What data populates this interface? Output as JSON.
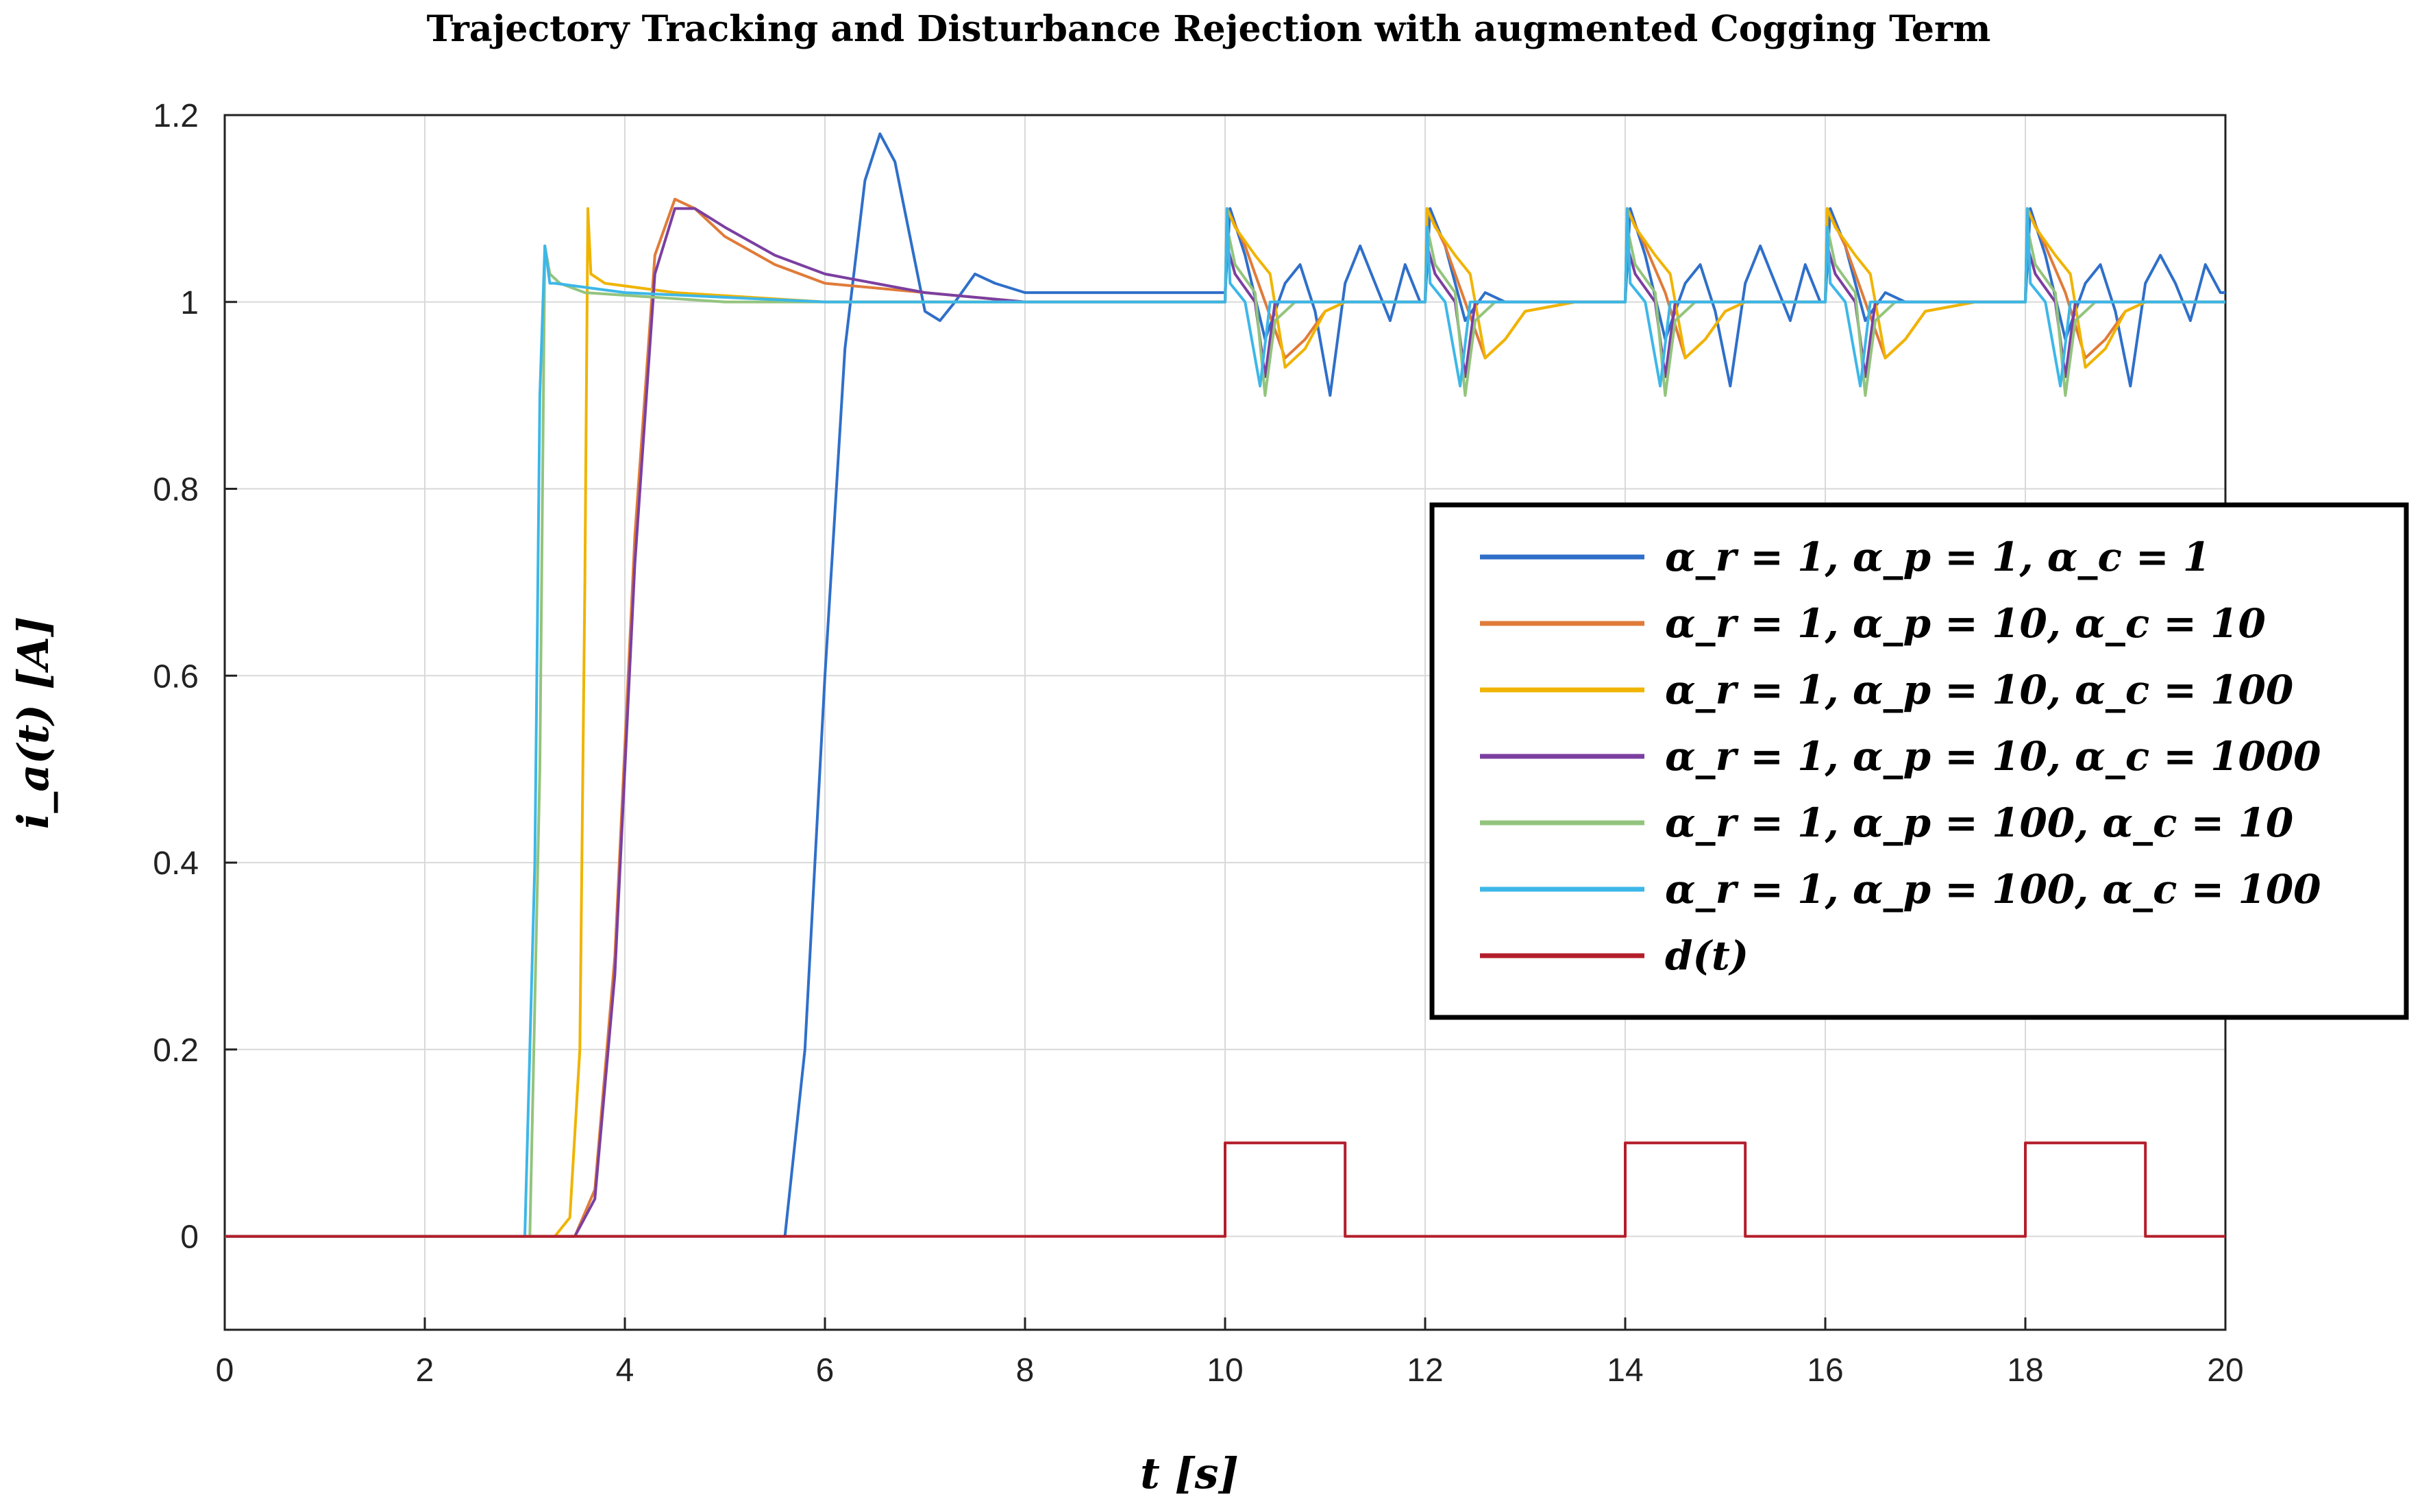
{
  "chart_data": {
    "type": "line",
    "title": "Trajectory Tracking and Disturbance Rejection with augmented Cogging Term",
    "xlabel": "t [s]",
    "ylabel": "i_a(t) [A]",
    "xlim": [
      0,
      20
    ],
    "ylim": [
      -0.1,
      1.2
    ],
    "xticks": [
      "0",
      "2",
      "4",
      "6",
      "8",
      "10",
      "12",
      "14",
      "16",
      "18",
      "20"
    ],
    "yticks": [
      "0",
      "0.2",
      "0.4",
      "0.6",
      "0.8",
      "1",
      "1.2"
    ],
    "grid": true,
    "legend_position": "center-right",
    "series": [
      {
        "name": "α_r = 1, α_p = 1, α_c = 1",
        "color": "#2f6fc9",
        "x": [
          0,
          5.6,
          5.8,
          6.0,
          6.2,
          6.4,
          6.55,
          6.7,
          6.85,
          7.0,
          7.15,
          7.3,
          7.5,
          7.7,
          8.0,
          8.5,
          9.0,
          9.5,
          10.0,
          10.05,
          10.2,
          10.4,
          10.6,
          10.75,
          10.9,
          11.05,
          11.2,
          11.35,
          11.5,
          11.65,
          11.8,
          11.95,
          12.0,
          12.05,
          12.2,
          12.4,
          12.6,
          12.8,
          13.0,
          13.5,
          14.0,
          14.05,
          14.2,
          14.4,
          14.6,
          14.75,
          14.9,
          15.05,
          15.2,
          15.35,
          15.5,
          15.65,
          15.8,
          15.95,
          16.0,
          16.05,
          16.2,
          16.4,
          16.6,
          16.8,
          17.0,
          17.5,
          18.0,
          18.05,
          18.2,
          18.4,
          18.6,
          18.75,
          18.9,
          19.05,
          19.2,
          19.35,
          19.5,
          19.65,
          19.8,
          19.95,
          20.0
        ],
        "y": [
          0,
          0,
          0.2,
          0.6,
          0.95,
          1.13,
          1.18,
          1.15,
          1.07,
          0.99,
          0.98,
          1.0,
          1.03,
          1.02,
          1.01,
          1.01,
          1.01,
          1.01,
          1.01,
          1.1,
          1.05,
          0.96,
          1.02,
          1.04,
          0.99,
          0.9,
          1.02,
          1.06,
          1.02,
          0.98,
          1.04,
          1.0,
          1.0,
          1.1,
          1.06,
          0.98,
          1.01,
          1.0,
          1.0,
          1.0,
          1.0,
          1.1,
          1.05,
          0.96,
          1.02,
          1.04,
          0.99,
          0.91,
          1.02,
          1.06,
          1.02,
          0.98,
          1.04,
          1.0,
          1.0,
          1.1,
          1.06,
          0.98,
          1.01,
          1.0,
          1.0,
          1.0,
          1.0,
          1.1,
          1.05,
          0.96,
          1.02,
          1.04,
          0.99,
          0.91,
          1.02,
          1.05,
          1.02,
          0.98,
          1.04,
          1.01,
          1.01
        ]
      },
      {
        "name": "α_r = 1, α_p = 10, α_c = 10",
        "color": "#e07b39",
        "x": [
          0,
          3.5,
          3.7,
          3.9,
          4.1,
          4.3,
          4.5,
          4.7,
          5.0,
          5.5,
          6.0,
          7.0,
          8.0,
          9.0,
          10.0,
          10.02,
          10.2,
          10.4,
          10.6,
          10.8,
          11.0,
          11.2,
          11.5,
          12.0,
          12.02,
          12.2,
          12.4,
          12.6,
          12.8,
          13.0,
          13.5,
          14.0,
          14.02,
          14.2,
          14.4,
          14.6,
          14.8,
          15.0,
          15.2,
          15.5,
          16.0,
          16.02,
          16.2,
          16.4,
          16.6,
          16.8,
          17.0,
          17.5,
          18.0,
          18.02,
          18.2,
          18.4,
          18.6,
          18.8,
          19.0,
          19.2,
          19.5,
          20.0
        ],
        "y": [
          0,
          0,
          0.05,
          0.3,
          0.75,
          1.05,
          1.11,
          1.1,
          1.07,
          1.04,
          1.02,
          1.01,
          1.0,
          1.0,
          1.0,
          1.1,
          1.06,
          1.0,
          0.94,
          0.96,
          0.99,
          1.0,
          1.0,
          1.0,
          1.1,
          1.06,
          1.0,
          0.94,
          0.96,
          0.99,
          1.0,
          1.0,
          1.1,
          1.06,
          1.01,
          0.94,
          0.96,
          0.99,
          1.0,
          1.0,
          1.0,
          1.1,
          1.06,
          1.0,
          0.94,
          0.96,
          0.99,
          1.0,
          1.0,
          1.1,
          1.06,
          1.01,
          0.94,
          0.96,
          0.99,
          1.0,
          1.0,
          1.0
        ]
      },
      {
        "name": "α_r = 1, α_p = 10, α_c = 100",
        "color": "#f0b400",
        "x": [
          0,
          3.3,
          3.45,
          3.55,
          3.6,
          3.63,
          3.66,
          3.8,
          4.5,
          6.0,
          8.0,
          10.0,
          10.02,
          10.1,
          10.3,
          10.45,
          10.6,
          10.8,
          11.0,
          11.2,
          11.5,
          12.0,
          12.02,
          12.1,
          12.3,
          12.45,
          12.6,
          12.8,
          13.0,
          13.5,
          14.0,
          14.02,
          14.1,
          14.3,
          14.45,
          14.6,
          14.8,
          15.0,
          15.2,
          15.5,
          16.0,
          16.02,
          16.1,
          16.3,
          16.45,
          16.6,
          16.8,
          17.0,
          17.5,
          18.0,
          18.02,
          18.1,
          18.3,
          18.45,
          18.6,
          18.8,
          19.0,
          19.2,
          19.5,
          20.0
        ],
        "y": [
          0,
          0,
          0.02,
          0.2,
          0.7,
          1.1,
          1.03,
          1.02,
          1.01,
          1.0,
          1.0,
          1.0,
          1.1,
          1.08,
          1.05,
          1.03,
          0.93,
          0.95,
          0.99,
          1.0,
          1.0,
          1.0,
          1.1,
          1.08,
          1.05,
          1.03,
          0.94,
          0.96,
          0.99,
          1.0,
          1.0,
          1.1,
          1.08,
          1.05,
          1.03,
          0.94,
          0.96,
          0.99,
          1.0,
          1.0,
          1.0,
          1.1,
          1.08,
          1.05,
          1.03,
          0.94,
          0.96,
          0.99,
          1.0,
          1.0,
          1.1,
          1.08,
          1.05,
          1.03,
          0.93,
          0.95,
          0.99,
          1.0,
          1.0,
          1.0
        ]
      },
      {
        "name": "α_r = 1, α_p = 10, α_c = 1000",
        "color": "#7b3fa0",
        "x": [
          0,
          3.5,
          3.7,
          3.9,
          4.1,
          4.3,
          4.5,
          4.7,
          5.0,
          5.5,
          6.0,
          7.0,
          8.0,
          9.0,
          10.0,
          10.02,
          10.1,
          10.3,
          10.4,
          10.5,
          11.0,
          12.0,
          12.02,
          12.1,
          12.3,
          12.4,
          12.5,
          13.0,
          14.0,
          14.02,
          14.1,
          14.3,
          14.4,
          14.5,
          15.0,
          16.0,
          16.02,
          16.1,
          16.3,
          16.4,
          16.5,
          17.0,
          18.0,
          18.02,
          18.1,
          18.3,
          18.4,
          18.5,
          19.0,
          20.0
        ],
        "y": [
          0,
          0,
          0.04,
          0.28,
          0.72,
          1.03,
          1.1,
          1.1,
          1.08,
          1.05,
          1.03,
          1.01,
          1.0,
          1.0,
          1.0,
          1.06,
          1.03,
          1.0,
          0.92,
          1.0,
          1.0,
          1.0,
          1.06,
          1.03,
          1.0,
          0.92,
          1.0,
          1.0,
          1.0,
          1.06,
          1.03,
          1.0,
          0.92,
          1.0,
          1.0,
          1.0,
          1.06,
          1.03,
          1.0,
          0.92,
          1.0,
          1.0,
          1.0,
          1.06,
          1.03,
          1.0,
          0.92,
          1.0,
          1.0,
          1.0
        ]
      },
      {
        "name": "α_r = 1, α_p = 100, α_c = 10",
        "color": "#93c47d",
        "x": [
          0,
          3.05,
          3.15,
          3.2,
          3.25,
          3.35,
          3.6,
          5.0,
          8.0,
          10.0,
          10.02,
          10.1,
          10.3,
          10.4,
          10.5,
          10.7,
          11.0,
          12.0,
          12.02,
          12.1,
          12.3,
          12.4,
          12.5,
          12.7,
          13.0,
          14.0,
          14.02,
          14.1,
          14.3,
          14.4,
          14.5,
          14.7,
          15.0,
          16.0,
          16.02,
          16.1,
          16.3,
          16.4,
          16.5,
          16.7,
          17.0,
          18.0,
          18.02,
          18.1,
          18.3,
          18.4,
          18.5,
          18.7,
          19.0,
          20.0
        ],
        "y": [
          0,
          0,
          0.5,
          1.06,
          1.03,
          1.02,
          1.01,
          1.0,
          1.0,
          1.0,
          1.08,
          1.04,
          1.01,
          0.9,
          0.98,
          1.0,
          1.0,
          1.0,
          1.08,
          1.04,
          1.01,
          0.9,
          0.98,
          1.0,
          1.0,
          1.0,
          1.08,
          1.04,
          1.01,
          0.9,
          0.98,
          1.0,
          1.0,
          1.0,
          1.08,
          1.04,
          1.01,
          0.9,
          0.98,
          1.0,
          1.0,
          1.0,
          1.08,
          1.04,
          1.01,
          0.9,
          0.98,
          1.0,
          1.0,
          1.0
        ]
      },
      {
        "name": "α_r = 1, α_p = 100, α_c = 100",
        "color": "#3db7e8",
        "x": [
          0,
          3.0,
          3.1,
          3.15,
          3.2,
          3.25,
          3.3,
          4.0,
          6.0,
          8.0,
          10.0,
          10.02,
          10.05,
          10.2,
          10.35,
          10.45,
          10.55,
          11.0,
          12.0,
          12.02,
          12.05,
          12.2,
          12.35,
          12.45,
          12.55,
          13.0,
          14.0,
          14.02,
          14.05,
          14.2,
          14.35,
          14.45,
          14.55,
          15.0,
          16.0,
          16.02,
          16.05,
          16.2,
          16.35,
          16.45,
          16.55,
          17.0,
          18.0,
          18.02,
          18.05,
          18.2,
          18.35,
          18.45,
          18.55,
          19.0,
          20.0
        ],
        "y": [
          0,
          0,
          0.4,
          0.9,
          1.06,
          1.02,
          1.02,
          1.01,
          1.0,
          1.0,
          1.0,
          1.1,
          1.02,
          1.0,
          0.91,
          1.0,
          1.0,
          1.0,
          1.0,
          1.08,
          1.02,
          1.0,
          0.91,
          1.0,
          1.0,
          1.0,
          1.0,
          1.1,
          1.02,
          1.0,
          0.91,
          1.0,
          1.0,
          1.0,
          1.0,
          1.08,
          1.02,
          1.0,
          0.91,
          1.0,
          1.0,
          1.0,
          1.0,
          1.1,
          1.02,
          1.0,
          0.91,
          1.0,
          1.0,
          1.0,
          1.0
        ]
      },
      {
        "name": "d(t)",
        "color": "#b41e2a",
        "x": [
          0,
          10.0,
          10.0,
          11.2,
          11.2,
          14.0,
          14.0,
          15.2,
          15.2,
          18.0,
          18.0,
          19.2,
          19.2,
          20.0
        ],
        "y": [
          0,
          0,
          0.1,
          0.1,
          0,
          0,
          0.1,
          0.1,
          0,
          0,
          0.1,
          0.1,
          0,
          0
        ]
      }
    ]
  }
}
